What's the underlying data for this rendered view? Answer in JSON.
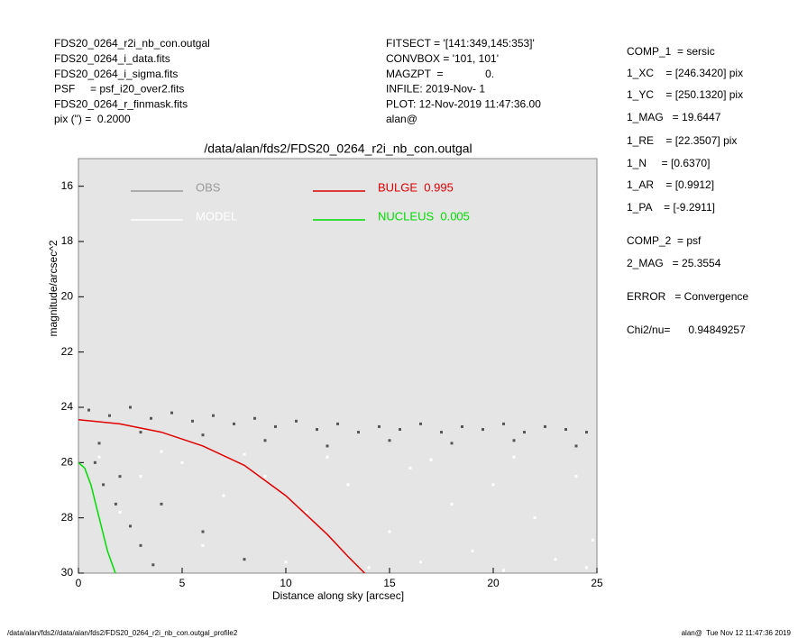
{
  "header": {
    "left": [
      "FDS20_0264_r2i_nb_con.outgal",
      "FDS20_0264_i_data.fits",
      "FDS20_0264_i_sigma.fits",
      "PSF     = psf_i20_over2.fits",
      "FDS20_0264_r_finmask.fits",
      "pix (\") =  0.2000"
    ],
    "middle": [
      "FITSECT = '[141:349,145:353]'",
      "CONVBOX = '101, 101'",
      "MAGZPT  =              0.",
      "INFILE: 2019-Nov- 1",
      "PLOT: 12-Nov-2019 11:47:36.00",
      "alan@"
    ]
  },
  "info_panel": [
    "COMP_1  = sersic",
    "1_XC    = [246.3420] pix",
    "1_YC    = [250.1320] pix",
    "1_MAG   = 19.6447",
    "1_RE    = [22.3507] pix",
    "1_N     = [0.6370]",
    "1_AR    = [0.9912]",
    "1_PA    = [-9.2911]",
    "COMP_2  = psf",
    "2_MAG   = 25.3554",
    "ERROR   = Convergence",
    "Chi2/nu=      0.94849257"
  ],
  "chart_data": {
    "type": "scatter",
    "title": "/data/alan/fds2/FDS20_0264_r2i_nb_con.outgal",
    "x_label": "Distance along sky [arcsec]",
    "y_label": "magnitude/arcsec^2",
    "xlim": [
      0,
      25
    ],
    "ylim": [
      30,
      15
    ],
    "xticks": [
      0,
      5,
      10,
      15,
      20,
      25
    ],
    "yticks": [
      16,
      18,
      20,
      22,
      24,
      26,
      28,
      30
    ],
    "background": "#e5e5e5",
    "series": [
      {
        "name": "OBS",
        "type": "scatter",
        "color": "#555555",
        "x": [
          0.5,
          1.5,
          2.5,
          3.5,
          4.5,
          5.5,
          6.5,
          7.5,
          8.5,
          9.5,
          10.5,
          11.5,
          12.5,
          13.5,
          14.5,
          15.5,
          16.5,
          17.5,
          18.5,
          19.5,
          20.5,
          21.5,
          22.5,
          23.5,
          24.5,
          1,
          3,
          6,
          9,
          12,
          15,
          18,
          21,
          24,
          0.8,
          1.2,
          1.8,
          2.5,
          3.0,
          3.6,
          2,
          4,
          6,
          8
        ],
        "y": [
          24.1,
          24.3,
          24.0,
          24.4,
          24.2,
          24.5,
          24.3,
          24.6,
          24.4,
          24.7,
          24.5,
          24.8,
          24.6,
          24.9,
          24.7,
          24.8,
          24.6,
          24.9,
          24.7,
          24.8,
          24.6,
          24.9,
          24.7,
          24.8,
          24.9,
          25.3,
          24.9,
          25.0,
          25.2,
          25.4,
          25.2,
          25.3,
          25.2,
          25.4,
          26.0,
          26.8,
          27.5,
          28.3,
          29.0,
          29.7,
          26.5,
          27.5,
          28.5,
          29.5
        ]
      },
      {
        "name": "MODEL",
        "type": "scatter",
        "color": "#ffffff",
        "x": [
          1,
          3,
          5,
          7,
          9,
          11,
          13,
          15,
          16,
          18,
          19,
          20,
          22,
          23,
          24,
          24.8,
          6,
          10,
          14,
          17,
          21,
          12,
          8,
          2,
          4,
          24.5,
          16.5,
          20.5
        ],
        "y": [
          25.8,
          26.5,
          26.0,
          27.2,
          26.5,
          27.8,
          26.8,
          28.5,
          26.2,
          27.5,
          29.2,
          26.8,
          28.0,
          29.5,
          26.5,
          28.8,
          29.0,
          29.6,
          29.8,
          25.9,
          25.8,
          25.8,
          25.7,
          27.8,
          25.6,
          29.8,
          29.6,
          29.9
        ]
      },
      {
        "name": "BULGE  0.995",
        "type": "line",
        "color": "#e00000",
        "x": [
          0,
          2,
          4,
          6,
          8,
          10,
          11,
          12,
          13,
          13.8
        ],
        "y": [
          24.45,
          24.6,
          24.9,
          25.4,
          26.1,
          27.2,
          27.9,
          28.6,
          29.4,
          30
        ]
      },
      {
        "name": "NUCLEUS  0.005",
        "type": "line",
        "color": "#00dd00",
        "x": [
          0,
          0.3,
          0.6,
          1,
          1.4,
          1.78
        ],
        "y": [
          26.0,
          26.2,
          26.8,
          28.0,
          29.2,
          30
        ]
      }
    ]
  },
  "footer": {
    "left": "/data/alan/fds2//data/alan/fds2/FDS20_0264_r2i_nb_con.outgal_profile2",
    "right": "alan@  Tue Nov 12 11:47:36 2019"
  }
}
